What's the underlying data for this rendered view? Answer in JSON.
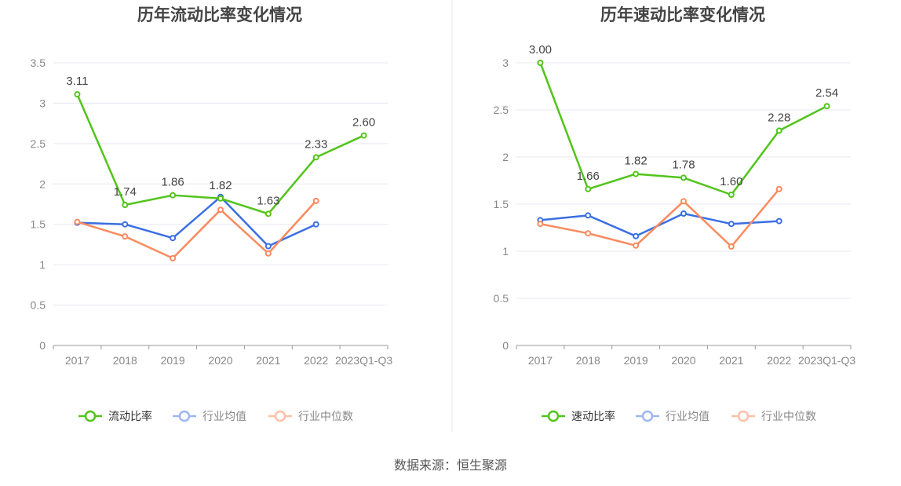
{
  "source": "数据来源：恒生聚源",
  "colors": {
    "main": "#52c41a",
    "avg": "#3b6fe3",
    "median": "#fa8a5e",
    "avg_legend": "#9db7f1",
    "median_legend": "#fcc0a8"
  },
  "chart_data": [
    {
      "type": "line",
      "title": "历年流动比率变化情况",
      "categories": [
        "2017",
        "2018",
        "2019",
        "2020",
        "2021",
        "2022",
        "2023Q1-Q3"
      ],
      "ylim": [
        0,
        3.5
      ],
      "yticks": [
        "0",
        "0.5",
        "1",
        "1.5",
        "2",
        "2.5",
        "3",
        "3.5"
      ],
      "ytick_values": [
        0,
        0.5,
        1,
        1.5,
        2,
        2.5,
        3,
        3.5
      ],
      "legend_position": "bottom",
      "series": [
        {
          "name": "流动比率",
          "key": "main",
          "values": [
            3.11,
            1.74,
            1.86,
            1.82,
            1.63,
            2.33,
            2.6
          ],
          "labels": [
            "3.11",
            "1.74",
            "1.86",
            "1.82",
            "1.63",
            "2.33",
            "2.60"
          ]
        },
        {
          "name": "行业均值",
          "key": "avg",
          "values": [
            1.52,
            1.5,
            1.33,
            1.84,
            1.23,
            1.5,
            null
          ]
        },
        {
          "name": "行业中位数",
          "key": "median",
          "values": [
            1.53,
            1.35,
            1.08,
            1.68,
            1.14,
            1.79,
            null
          ]
        }
      ]
    },
    {
      "type": "line",
      "title": "历年速动比率变化情况",
      "categories": [
        "2017",
        "2018",
        "2019",
        "2020",
        "2021",
        "2022",
        "2023Q1-Q3"
      ],
      "ylim": [
        0,
        3
      ],
      "yticks": [
        "0",
        "0.5",
        "1",
        "1.5",
        "2",
        "2.5",
        "3"
      ],
      "ytick_values": [
        0,
        0.5,
        1,
        1.5,
        2,
        2.5,
        3
      ],
      "legend_position": "bottom",
      "series": [
        {
          "name": "速动比率",
          "key": "main",
          "values": [
            3.0,
            1.66,
            1.82,
            1.78,
            1.6,
            2.28,
            2.54
          ],
          "labels": [
            "3.00",
            "1.66",
            "1.82",
            "1.78",
            "1.60",
            "2.28",
            "2.54"
          ]
        },
        {
          "name": "行业均值",
          "key": "avg",
          "values": [
            1.33,
            1.38,
            1.16,
            1.4,
            1.29,
            1.32,
            null
          ]
        },
        {
          "name": "行业中位数",
          "key": "median",
          "values": [
            1.29,
            1.19,
            1.06,
            1.53,
            1.05,
            1.66,
            null
          ]
        }
      ]
    }
  ]
}
